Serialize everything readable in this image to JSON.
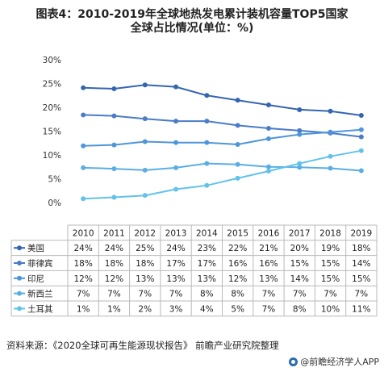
{
  "chart_data": {
    "type": "line",
    "title_lines": [
      "图表4：2010-2019年全球地热发电累计装机容量TOP5国家",
      "全球占比情况(单位：%)"
    ],
    "categories": [
      "2010",
      "2011",
      "2012",
      "2013",
      "2014",
      "2015",
      "2016",
      "2017",
      "2018",
      "2019"
    ],
    "y_ticks": [
      "0%",
      "5%",
      "10%",
      "15%",
      "20%",
      "25%",
      "30%"
    ],
    "ylim": [
      0,
      30
    ],
    "y_step": 5,
    "grid": false,
    "legend": "table-left",
    "series": [
      {
        "name": "美国",
        "color": "#3366b0",
        "values": [
          24.1,
          23.9,
          24.7,
          24.3,
          22.5,
          21.5,
          20.5,
          19.5,
          19.2,
          18.3
        ],
        "labels": [
          "24%",
          "24%",
          "25%",
          "24%",
          "23%",
          "22%",
          "21%",
          "20%",
          "19%",
          "18%"
        ]
      },
      {
        "name": "菲律宾",
        "color": "#4a7cc8",
        "values": [
          18.4,
          18.2,
          17.6,
          17.1,
          17.1,
          16.2,
          15.6,
          15.1,
          14.6,
          13.8
        ],
        "labels": [
          "18%",
          "18%",
          "18%",
          "17%",
          "17%",
          "16%",
          "16%",
          "15%",
          "15%",
          "14%"
        ]
      },
      {
        "name": "印尼",
        "color": "#4d96d9",
        "values": [
          11.9,
          12.1,
          12.8,
          12.6,
          12.6,
          12.2,
          13.4,
          14.3,
          14.8,
          15.3
        ],
        "labels": [
          "12%",
          "12%",
          "13%",
          "13%",
          "13%",
          "12%",
          "13%",
          "14%",
          "15%",
          "15%"
        ]
      },
      {
        "name": "新西兰",
        "color": "#5aaee3",
        "values": [
          7.3,
          7.1,
          6.8,
          7.3,
          8.2,
          8.0,
          7.5,
          7.4,
          7.2,
          6.7
        ],
        "labels": [
          "7%",
          "7%",
          "7%",
          "7%",
          "8%",
          "8%",
          "7%",
          "7%",
          "7%",
          "7%"
        ]
      },
      {
        "name": "土耳其",
        "color": "#63c2ea",
        "values": [
          0.8,
          1.1,
          1.5,
          2.8,
          3.6,
          5.1,
          6.6,
          8.2,
          9.7,
          10.9
        ],
        "labels": [
          "1%",
          "1%",
          "2%",
          "3%",
          "4%",
          "5%",
          "7%",
          "8%",
          "10%",
          "11%"
        ]
      }
    ]
  },
  "footer": {
    "source": "资料来源：《2020全球可再生能源现状报告》 前瞻产业研究院整理",
    "brand": "@前瞻经济学人APP"
  }
}
